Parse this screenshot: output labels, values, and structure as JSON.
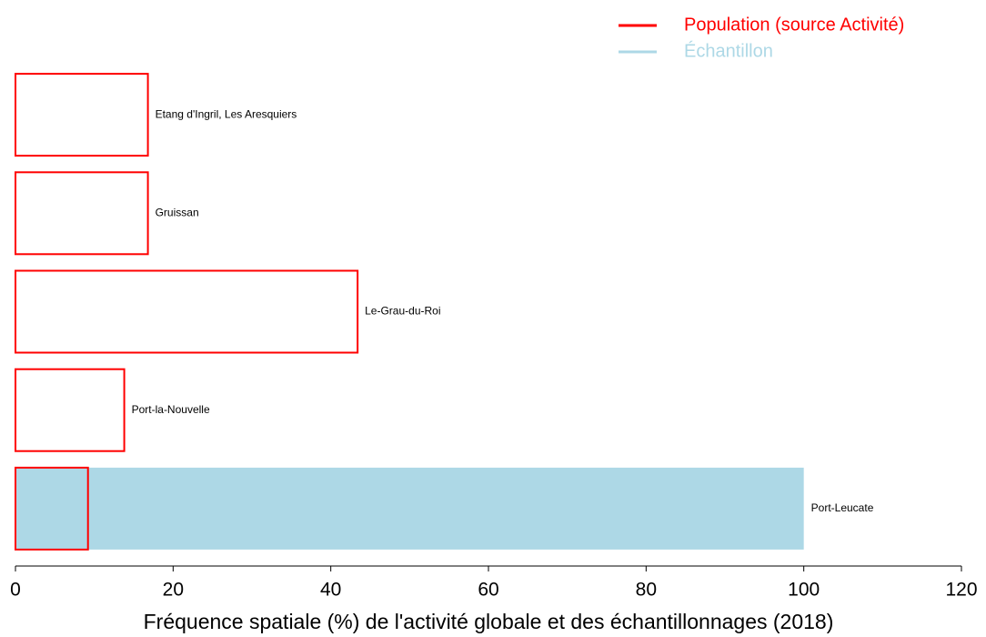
{
  "chart_data": {
    "type": "bar",
    "orientation": "horizontal",
    "xlabel": "Fréquence spatiale (%) de l'activité globale et des échantillonnages (2018)",
    "categories": [
      "Etang d'Ingril, Les Aresquiers",
      "Gruissan",
      "Le-Grau-du-Roi",
      "Port-la-Nouvelle",
      "Port-Leucate"
    ],
    "series": [
      {
        "name": "Population (source Activité)",
        "color": "#ff0000",
        "style": "outline",
        "values": [
          16.8,
          16.8,
          43.4,
          13.8,
          9.2
        ]
      },
      {
        "name": "Échantillon",
        "color": "#add8e6",
        "style": "fill",
        "values": [
          0,
          0,
          0,
          0,
          100
        ]
      }
    ],
    "xlim": [
      0,
      120
    ],
    "xticks": [
      0,
      20,
      40,
      60,
      80,
      100,
      120
    ],
    "legend": "top-right"
  }
}
